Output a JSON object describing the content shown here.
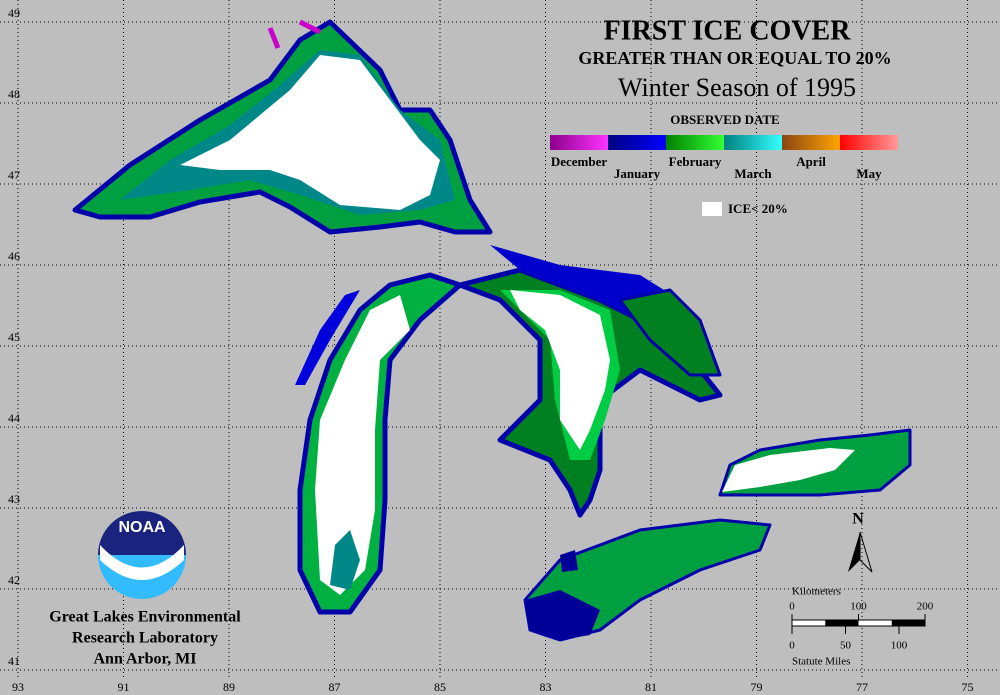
{
  "title": "FIRST ICE COVER",
  "subtitle": "GREATER THAN OR EQUAL TO 20%",
  "season": "Winter Season of 1995",
  "legend": {
    "title": "OBSERVED DATE",
    "items": [
      {
        "label": "December",
        "colors": [
          "#8b008b",
          "#ff33ff"
        ]
      },
      {
        "label": "January",
        "colors": [
          "#000080",
          "#0000ff"
        ]
      },
      {
        "label": "February",
        "colors": [
          "#008000",
          "#33ff33"
        ]
      },
      {
        "label": "March",
        "colors": [
          "#008080",
          "#33ffff"
        ]
      },
      {
        "label": "April",
        "colors": [
          "#8b4513",
          "#ffa500"
        ]
      },
      {
        "label": "May",
        "colors": [
          "#ff0000",
          "#ff9999"
        ]
      }
    ],
    "no_ice_label": "ICE< 20%"
  },
  "lon_ticks": [
    93,
    91,
    89,
    87,
    85,
    83,
    81,
    79,
    77,
    75
  ],
  "lat_ticks": [
    41,
    42,
    43,
    44,
    45,
    46,
    47,
    48,
    49
  ],
  "scale": {
    "title": "Kilometers",
    "km_ticks": [
      0,
      100,
      200
    ],
    "mile_ticks": [
      0,
      50,
      100
    ],
    "units_label": "Statute Miles"
  },
  "north_label": "N",
  "logo_text": "NOAA",
  "credit": [
    "Great Lakes Environmental",
    "Research Laboratory",
    "Ann Arbor, MI"
  ]
}
